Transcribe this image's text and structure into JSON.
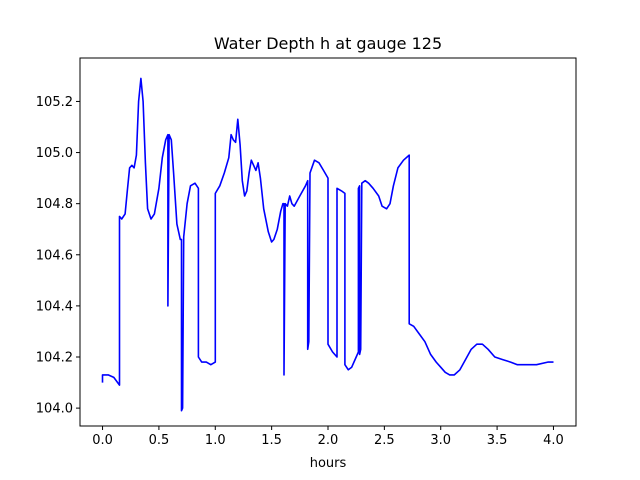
{
  "chart_data": {
    "type": "line",
    "title": "Water Depth h at gauge 125",
    "xlabel": "hours",
    "ylabel": "",
    "xlim": [
      -0.2,
      4.2
    ],
    "ylim": [
      103.93,
      105.37
    ],
    "grid": false,
    "x_ticks": [
      "0.0",
      "0.5",
      "1.0",
      "1.5",
      "2.0",
      "2.5",
      "3.0",
      "3.5",
      "4.0"
    ],
    "y_ticks": [
      "104.0",
      "104.2",
      "104.4",
      "104.6",
      "104.8",
      "105.0",
      "105.2"
    ],
    "series": [
      {
        "color": "#0000ff",
        "points": [
          [
            0.0,
            104.1
          ],
          [
            0.0,
            104.13
          ],
          [
            0.05,
            104.13
          ],
          [
            0.1,
            104.12
          ],
          [
            0.15,
            104.09
          ],
          [
            0.15,
            104.75
          ],
          [
            0.17,
            104.74
          ],
          [
            0.2,
            104.76
          ],
          [
            0.22,
            104.85
          ],
          [
            0.24,
            104.94
          ],
          [
            0.26,
            104.95
          ],
          [
            0.28,
            104.94
          ],
          [
            0.3,
            104.99
          ],
          [
            0.32,
            105.2
          ],
          [
            0.34,
            105.29
          ],
          [
            0.36,
            105.2
          ],
          [
            0.38,
            104.96
          ],
          [
            0.4,
            104.78
          ],
          [
            0.43,
            104.74
          ],
          [
            0.46,
            104.76
          ],
          [
            0.5,
            104.86
          ],
          [
            0.53,
            104.98
          ],
          [
            0.56,
            105.05
          ],
          [
            0.58,
            105.07
          ],
          [
            0.58,
            104.4
          ],
          [
            0.59,
            105.07
          ],
          [
            0.61,
            105.05
          ],
          [
            0.63,
            104.92
          ],
          [
            0.66,
            104.72
          ],
          [
            0.69,
            104.66
          ],
          [
            0.7,
            104.66
          ],
          [
            0.7,
            103.99
          ],
          [
            0.71,
            104.0
          ],
          [
            0.72,
            104.67
          ],
          [
            0.75,
            104.8
          ],
          [
            0.78,
            104.87
          ],
          [
            0.82,
            104.88
          ],
          [
            0.85,
            104.86
          ],
          [
            0.85,
            104.2
          ],
          [
            0.88,
            104.18
          ],
          [
            0.92,
            104.18
          ],
          [
            0.96,
            104.17
          ],
          [
            1.0,
            104.18
          ],
          [
            1.0,
            104.84
          ],
          [
            1.04,
            104.87
          ],
          [
            1.08,
            104.92
          ],
          [
            1.12,
            104.98
          ],
          [
            1.14,
            105.07
          ],
          [
            1.16,
            105.05
          ],
          [
            1.18,
            105.04
          ],
          [
            1.2,
            105.13
          ],
          [
            1.22,
            105.03
          ],
          [
            1.24,
            104.89
          ],
          [
            1.26,
            104.83
          ],
          [
            1.28,
            104.85
          ],
          [
            1.3,
            104.92
          ],
          [
            1.32,
            104.97
          ],
          [
            1.34,
            104.95
          ],
          [
            1.36,
            104.93
          ],
          [
            1.38,
            104.96
          ],
          [
            1.4,
            104.9
          ],
          [
            1.43,
            104.78
          ],
          [
            1.47,
            104.69
          ],
          [
            1.5,
            104.65
          ],
          [
            1.52,
            104.66
          ],
          [
            1.55,
            104.7
          ],
          [
            1.58,
            104.77
          ],
          [
            1.6,
            104.8
          ],
          [
            1.61,
            104.8
          ],
          [
            1.61,
            104.13
          ],
          [
            1.62,
            104.8
          ],
          [
            1.64,
            104.79
          ],
          [
            1.66,
            104.83
          ],
          [
            1.68,
            104.8
          ],
          [
            1.7,
            104.79
          ],
          [
            1.75,
            104.83
          ],
          [
            1.8,
            104.87
          ],
          [
            1.82,
            104.89
          ],
          [
            1.82,
            104.23
          ],
          [
            1.83,
            104.26
          ],
          [
            1.84,
            104.92
          ],
          [
            1.88,
            104.97
          ],
          [
            1.92,
            104.96
          ],
          [
            1.96,
            104.93
          ],
          [
            2.0,
            104.9
          ],
          [
            2.0,
            104.25
          ],
          [
            2.04,
            104.22
          ],
          [
            2.08,
            104.2
          ],
          [
            2.08,
            104.86
          ],
          [
            2.12,
            104.85
          ],
          [
            2.15,
            104.84
          ],
          [
            2.15,
            104.17
          ],
          [
            2.18,
            104.15
          ],
          [
            2.21,
            104.16
          ],
          [
            2.25,
            104.2
          ],
          [
            2.27,
            104.22
          ],
          [
            2.27,
            104.86
          ],
          [
            2.28,
            104.87
          ],
          [
            2.28,
            104.21
          ],
          [
            2.29,
            104.23
          ],
          [
            2.3,
            104.88
          ],
          [
            2.33,
            104.89
          ],
          [
            2.36,
            104.88
          ],
          [
            2.4,
            104.86
          ],
          [
            2.45,
            104.83
          ],
          [
            2.48,
            104.79
          ],
          [
            2.52,
            104.78
          ],
          [
            2.55,
            104.8
          ],
          [
            2.58,
            104.87
          ],
          [
            2.62,
            104.94
          ],
          [
            2.67,
            104.97
          ],
          [
            2.72,
            104.99
          ],
          [
            2.72,
            104.33
          ],
          [
            2.76,
            104.32
          ],
          [
            2.81,
            104.29
          ],
          [
            2.86,
            104.26
          ],
          [
            2.91,
            104.21
          ],
          [
            2.96,
            104.18
          ],
          [
            3.0,
            104.16
          ],
          [
            3.04,
            104.14
          ],
          [
            3.08,
            104.13
          ],
          [
            3.12,
            104.13
          ],
          [
            3.17,
            104.15
          ],
          [
            3.22,
            104.19
          ],
          [
            3.27,
            104.23
          ],
          [
            3.32,
            104.25
          ],
          [
            3.37,
            104.25
          ],
          [
            3.42,
            104.23
          ],
          [
            3.48,
            104.2
          ],
          [
            3.55,
            104.19
          ],
          [
            3.62,
            104.18
          ],
          [
            3.68,
            104.17
          ],
          [
            3.75,
            104.17
          ],
          [
            3.85,
            104.17
          ],
          [
            3.95,
            104.18
          ],
          [
            4.0,
            104.18
          ]
        ]
      }
    ]
  }
}
